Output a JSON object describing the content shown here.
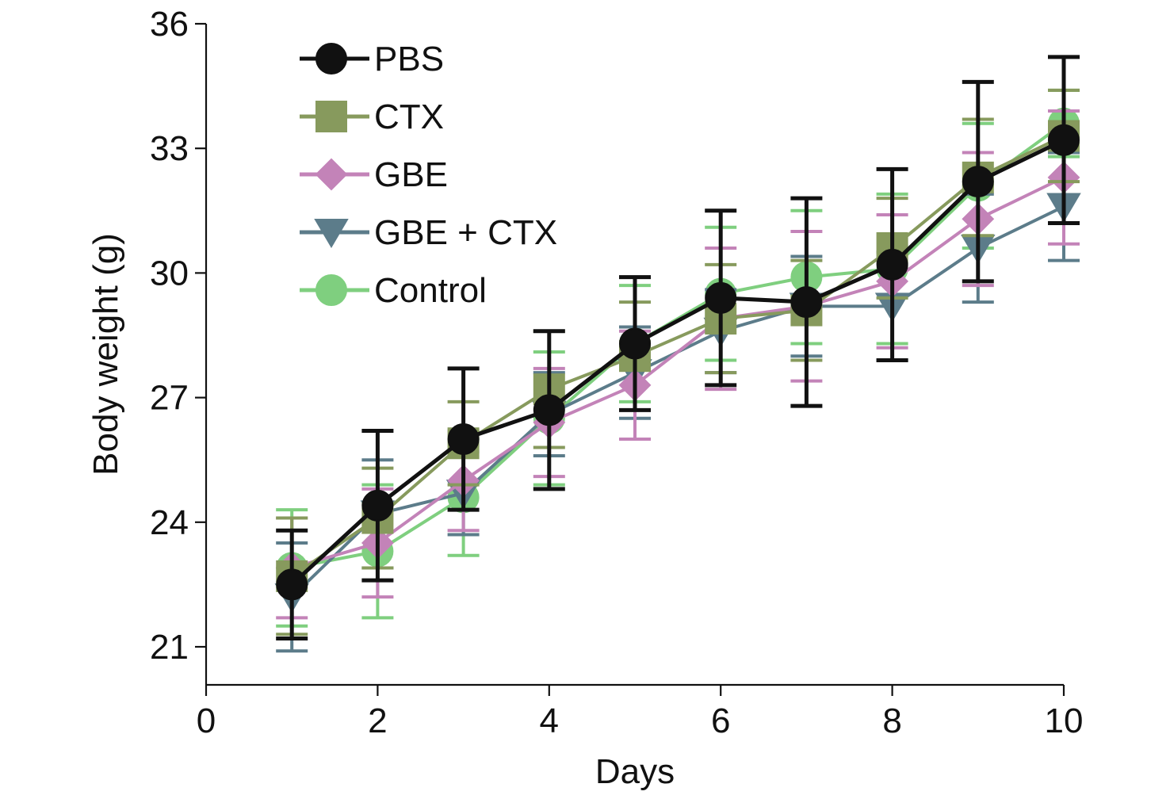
{
  "chart_data": {
    "type": "line",
    "title": "",
    "xlabel": "Days",
    "ylabel": "Body weight (g)",
    "xlim": [
      0,
      10
    ],
    "ylim": [
      20,
      36
    ],
    "xticks": [
      0,
      2,
      4,
      6,
      8,
      10
    ],
    "yticks": [
      21,
      24,
      27,
      30,
      33,
      36
    ],
    "x_tick_labels": [
      "0",
      "2",
      "4",
      "6",
      "8",
      "10"
    ],
    "y_tick_labels": [
      "21",
      "24",
      "27",
      "30",
      "33",
      "36"
    ],
    "grid": false,
    "legend_position": "top-left",
    "x": [
      1,
      2,
      3,
      4,
      5,
      6,
      7,
      8,
      9,
      10
    ],
    "error_bars": "upper and lower caps",
    "series": [
      {
        "name": "Control",
        "color": "#7fcf7f",
        "marker": "circle",
        "values": [
          22.9,
          23.3,
          24.6,
          26.5,
          28.3,
          29.5,
          29.9,
          30.1,
          32.1,
          33.6
        ],
        "err": [
          1.4,
          1.6,
          1.4,
          1.6,
          1.4,
          1.6,
          1.6,
          1.8,
          1.5,
          0.8
        ]
      },
      {
        "name": "GBE + CTX",
        "color": "#5c7c8a",
        "marker": "triangle-down",
        "values": [
          22.2,
          24.2,
          24.7,
          26.6,
          27.6,
          28.6,
          29.2,
          29.2,
          30.6,
          31.6
        ],
        "err": [
          1.3,
          1.3,
          1.0,
          1.0,
          1.1,
          1.0,
          1.2,
          1.3,
          1.3,
          1.3
        ]
      },
      {
        "name": "GBE",
        "color": "#c383b8",
        "marker": "diamond",
        "values": [
          22.9,
          23.5,
          25.0,
          26.4,
          27.3,
          28.9,
          29.2,
          29.8,
          31.3,
          32.3
        ],
        "err": [
          1.2,
          1.3,
          1.2,
          1.3,
          1.3,
          1.7,
          1.8,
          1.6,
          1.6,
          1.6
        ]
      },
      {
        "name": "CTX",
        "color": "#879a5d",
        "marker": "square",
        "values": [
          22.7,
          24.1,
          25.9,
          27.2,
          28.0,
          28.9,
          29.1,
          30.6,
          32.3,
          33.3
        ],
        "err": [
          1.4,
          1.2,
          1.0,
          1.4,
          1.3,
          1.3,
          1.2,
          1.2,
          1.4,
          1.1
        ]
      },
      {
        "name": "PBS",
        "color": "#111111",
        "marker": "circle",
        "values": [
          22.5,
          24.4,
          26.0,
          26.7,
          28.3,
          29.4,
          29.3,
          30.2,
          32.2,
          33.2
        ],
        "err": [
          1.3,
          1.8,
          1.7,
          1.9,
          1.6,
          2.1,
          2.5,
          2.3,
          2.4,
          2.0
        ]
      }
    ],
    "legend_order": [
      "PBS",
      "CTX",
      "GBE",
      "GBE + CTX",
      "Control"
    ]
  }
}
